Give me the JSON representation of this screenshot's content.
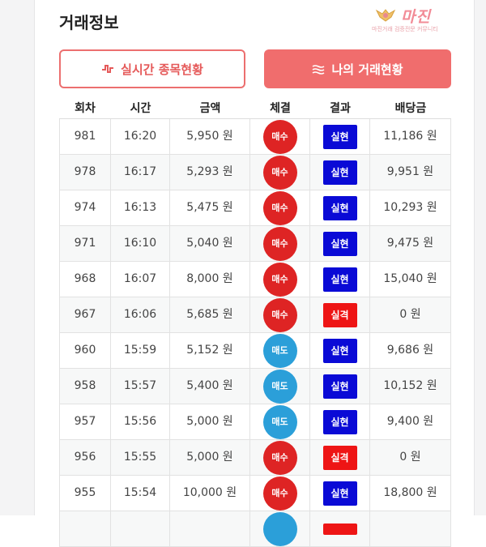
{
  "section_title": "거래정보",
  "watermark": {
    "title": "마진",
    "subtitle": "마진거래 검증전문 커뮤니티"
  },
  "tabs": [
    {
      "label": "실시간 종목현황",
      "icon": "pulse-icon"
    },
    {
      "label": "나의 거래현황",
      "icon": "waves-icon"
    }
  ],
  "columns": [
    "회차",
    "시간",
    "금액",
    "체결",
    "결과",
    "배당금"
  ],
  "colors": {
    "buy": "#de2424",
    "sell": "#2b9fd9",
    "win": "#0a0ad6",
    "lose": "#ee1515"
  },
  "rows": [
    {
      "round": "981",
      "time": "16:20",
      "amount": "5,950 원",
      "trade": "매수",
      "type": "buy",
      "result": "실현",
      "result_type": "win",
      "payout": "11,186 원"
    },
    {
      "round": "978",
      "time": "16:17",
      "amount": "5,293 원",
      "trade": "매수",
      "type": "buy",
      "result": "실현",
      "result_type": "win",
      "payout": "9,951 원"
    },
    {
      "round": "974",
      "time": "16:13",
      "amount": "5,475 원",
      "trade": "매수",
      "type": "buy",
      "result": "실현",
      "result_type": "win",
      "payout": "10,293 원"
    },
    {
      "round": "971",
      "time": "16:10",
      "amount": "5,040 원",
      "trade": "매수",
      "type": "buy",
      "result": "실현",
      "result_type": "win",
      "payout": "9,475 원"
    },
    {
      "round": "968",
      "time": "16:07",
      "amount": "8,000 원",
      "trade": "매수",
      "type": "buy",
      "result": "실현",
      "result_type": "win",
      "payout": "15,040 원"
    },
    {
      "round": "967",
      "time": "16:06",
      "amount": "5,685 원",
      "trade": "매수",
      "type": "buy",
      "result": "실격",
      "result_type": "lose",
      "payout": "0 원"
    },
    {
      "round": "960",
      "time": "15:59",
      "amount": "5,152 원",
      "trade": "매도",
      "type": "sell",
      "result": "실현",
      "result_type": "win",
      "payout": "9,686 원"
    },
    {
      "round": "958",
      "time": "15:57",
      "amount": "5,400 원",
      "trade": "매도",
      "type": "sell",
      "result": "실현",
      "result_type": "win",
      "payout": "10,152 원"
    },
    {
      "round": "957",
      "time": "15:56",
      "amount": "5,000 원",
      "trade": "매도",
      "type": "sell",
      "result": "실현",
      "result_type": "win",
      "payout": "9,400 원"
    },
    {
      "round": "956",
      "time": "15:55",
      "amount": "5,000 원",
      "trade": "매수",
      "type": "buy",
      "result": "실격",
      "result_type": "lose",
      "payout": "0 원"
    },
    {
      "round": "955",
      "time": "15:54",
      "amount": "10,000 원",
      "trade": "매수",
      "type": "buy",
      "result": "실현",
      "result_type": "win",
      "payout": "18,800 원"
    },
    {
      "round": "",
      "time": "",
      "amount": "",
      "trade": "",
      "type": "sell",
      "result": "",
      "result_type": "lose",
      "payout": ""
    }
  ]
}
